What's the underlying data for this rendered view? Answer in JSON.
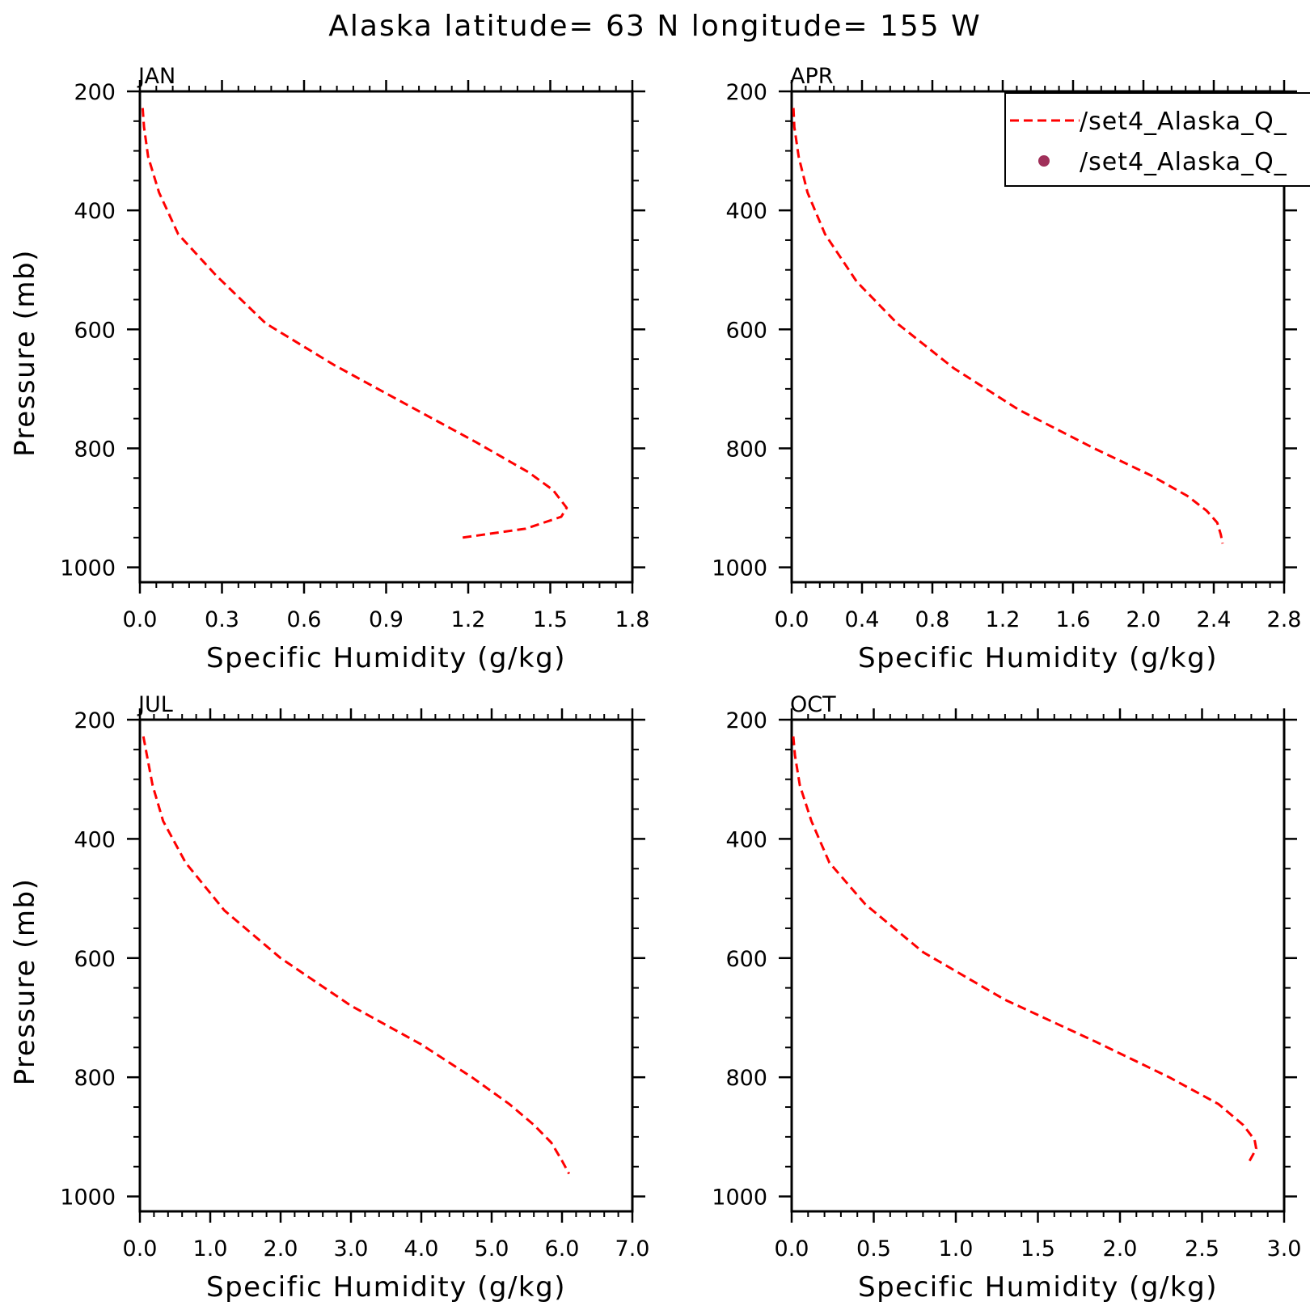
{
  "title": "Alaska  latitude= 63 N longitude= 155 W",
  "legend": {
    "placement": "top-right",
    "entries": [
      {
        "label": "/set4_Alaska_Q_",
        "style": "dashed-line",
        "color": "#ff0000"
      },
      {
        "label": "/set4_Alaska_Q_",
        "style": "dot",
        "color": "#a0305a"
      }
    ]
  },
  "chart_data": [
    {
      "type": "line",
      "title": "JAN",
      "xlabel": "Specific Humidity (g/kg)",
      "ylabel": "Pressure (mb)",
      "xlim": [
        0,
        1.8
      ],
      "ylim": [
        1025,
        200
      ],
      "xticks": [
        "0.0",
        "0.3",
        "0.6",
        "0.9",
        "1.2",
        "1.5",
        "1.8"
      ],
      "yticks": [
        "200",
        "400",
        "600",
        "800",
        "1000"
      ],
      "series": [
        {
          "style": "dashed",
          "color": "#ff0000",
          "x": [
            0.01,
            0.015,
            0.03,
            0.07,
            0.14,
            0.28,
            0.46,
            0.71,
            0.99,
            1.23,
            1.42,
            1.51,
            1.56,
            1.54,
            1.41,
            1.18
          ],
          "y": [
            228,
            260,
            310,
            370,
            440,
            510,
            590,
            660,
            730,
            790,
            840,
            870,
            900,
            915,
            935,
            950
          ]
        }
      ]
    },
    {
      "type": "line",
      "title": "APR",
      "xlabel": "Specific Humidity (g/kg)",
      "ylabel": "",
      "xlim": [
        0,
        2.8
      ],
      "ylim": [
        1025,
        200
      ],
      "xticks": [
        "0.0",
        "0.4",
        "0.8",
        "1.2",
        "1.6",
        "2.0",
        "2.4",
        "2.8"
      ],
      "yticks": [
        "200",
        "400",
        "600",
        "800",
        "1000"
      ],
      "series": [
        {
          "style": "dashed",
          "color": "#ff0000",
          "x": [
            0.01,
            0.015,
            0.04,
            0.09,
            0.19,
            0.37,
            0.6,
            0.92,
            1.29,
            1.72,
            2.04,
            2.25,
            2.36,
            2.42,
            2.44,
            2.45
          ],
          "y": [
            228,
            260,
            310,
            370,
            440,
            520,
            590,
            665,
            735,
            800,
            845,
            880,
            905,
            925,
            945,
            960
          ]
        }
      ]
    },
    {
      "type": "line",
      "title": "JUL",
      "xlabel": "Specific Humidity (g/kg)",
      "ylabel": "Pressure (mb)",
      "xlim": [
        0,
        7
      ],
      "ylim": [
        1025,
        200
      ],
      "xticks": [
        "0.0",
        "1.0",
        "2.0",
        "3.0",
        "4.0",
        "5.0",
        "6.0",
        "7.0"
      ],
      "yticks": [
        "200",
        "400",
        "600",
        "800",
        "1000"
      ],
      "series": [
        {
          "style": "dashed",
          "color": "#ff0000",
          "x": [
            0.05,
            0.1,
            0.18,
            0.33,
            0.65,
            1.2,
            2.0,
            3.0,
            4.0,
            4.72,
            5.25,
            5.6,
            5.85,
            6.0,
            6.1
          ],
          "y": [
            228,
            260,
            310,
            370,
            440,
            520,
            600,
            680,
            745,
            800,
            845,
            880,
            910,
            940,
            962
          ]
        }
      ]
    },
    {
      "type": "line",
      "title": "OCT",
      "xlabel": "Specific Humidity (g/kg)",
      "ylabel": "",
      "xlim": [
        0,
        3
      ],
      "ylim": [
        1025,
        200
      ],
      "xticks": [
        "0.0",
        "0.5",
        "1.0",
        "1.5",
        "2.0",
        "2.5",
        "3.0"
      ],
      "yticks": [
        "200",
        "400",
        "600",
        "800",
        "1000"
      ],
      "series": [
        {
          "style": "dashed",
          "color": "#ff0000",
          "x": [
            0.01,
            0.02,
            0.05,
            0.12,
            0.23,
            0.45,
            0.8,
            1.3,
            1.85,
            2.3,
            2.6,
            2.75,
            2.82,
            2.83,
            2.8,
            2.78
          ],
          "y": [
            228,
            260,
            310,
            370,
            440,
            510,
            590,
            670,
            740,
            800,
            845,
            880,
            905,
            920,
            935,
            945
          ]
        }
      ]
    }
  ]
}
